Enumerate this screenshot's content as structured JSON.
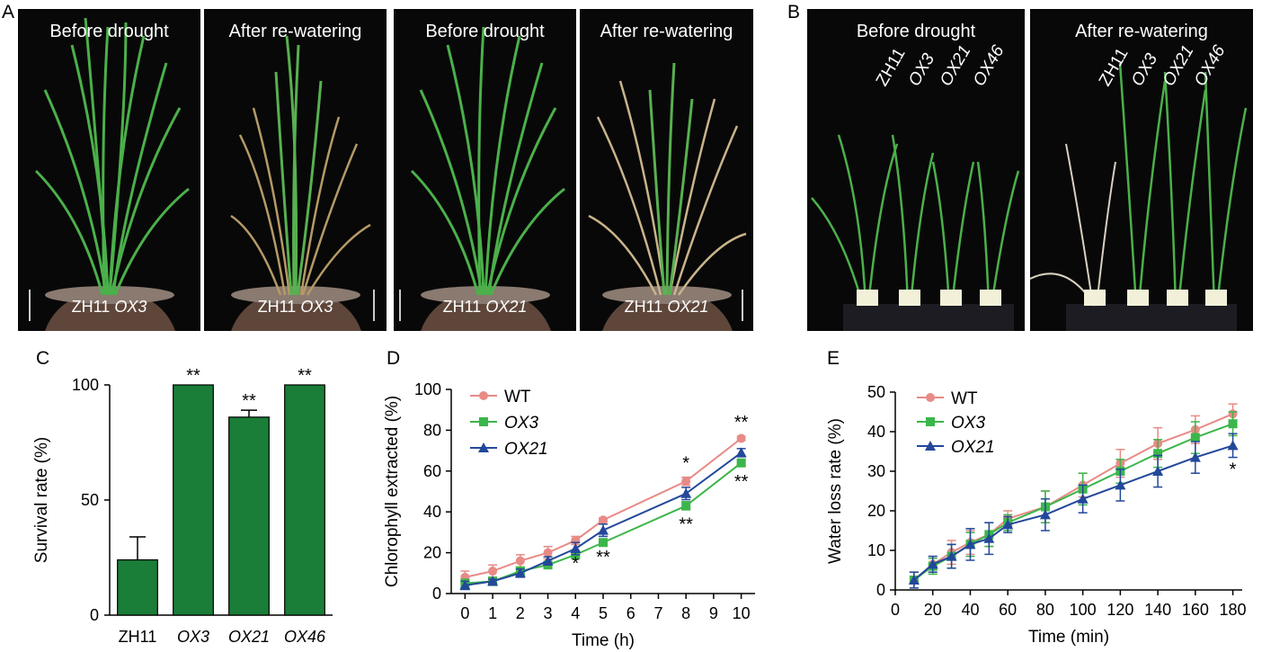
{
  "panel_letters": {
    "A": "A",
    "B": "B",
    "C": "C",
    "D": "D",
    "E": "E"
  },
  "photos_a": [
    {
      "caption": "Before drought",
      "label_plain": "ZH11 ",
      "label_italic": "OX3"
    },
    {
      "caption": "After re-watering",
      "label_plain": "ZH11 ",
      "label_italic": "OX3"
    },
    {
      "caption": "Before drought",
      "label_plain": "ZH11  ",
      "label_italic": "OX21"
    },
    {
      "caption": "After re-watering",
      "label_plain": "ZH11 ",
      "label_italic": "OX21"
    }
  ],
  "photos_b": [
    {
      "caption": "Before drought",
      "genotypes": [
        "ZH11",
        "OX3",
        "OX21",
        "OX46"
      ]
    },
    {
      "caption": "After re-watering",
      "genotypes": [
        "ZH11",
        "OX3",
        "OX21",
        "OX46"
      ]
    }
  ],
  "colors": {
    "bar": "#1a7d38",
    "wt": "#e88a86",
    "ox3": "#3cb64a",
    "ox21": "#23489a",
    "photo_bg": "#080808"
  },
  "chart_data": [
    {
      "type": "bar",
      "panel": "C",
      "categories": [
        "ZH11",
        "OX3",
        "OX21",
        "OX46"
      ],
      "categories_italic": [
        false,
        true,
        true,
        true
      ],
      "values": [
        24,
        100,
        86,
        100
      ],
      "errors": [
        10,
        0,
        3,
        0
      ],
      "significance": [
        "",
        "**",
        "**",
        "**"
      ],
      "ylabel": "Survival rate (%)",
      "xlabel": "",
      "ylim": [
        0,
        100
      ],
      "yticks": [
        0,
        50,
        100
      ],
      "legend": "none",
      "grid": false
    },
    {
      "type": "line",
      "panel": "D",
      "x": [
        0,
        1,
        2,
        3,
        4,
        5,
        8,
        10
      ],
      "xtick_labels": [
        "0",
        "1",
        "2",
        "3",
        "4",
        "5",
        "6",
        "7",
        "8",
        "9",
        "10"
      ],
      "series": [
        {
          "name": "WT",
          "italic": false,
          "marker": "circle",
          "values": [
            8,
            11,
            16,
            20,
            26,
            36,
            55,
            76
          ],
          "errors": [
            3,
            3,
            3,
            3,
            2,
            1,
            2,
            1
          ]
        },
        {
          "name": "OX3",
          "italic": true,
          "marker": "square",
          "values": [
            5,
            6,
            11,
            14,
            19,
            25,
            43,
            64
          ],
          "errors": [
            2,
            2,
            2,
            1,
            2,
            1,
            2,
            1
          ]
        },
        {
          "name": "OX21",
          "italic": true,
          "marker": "triangle",
          "values": [
            4,
            6,
            10,
            16,
            22,
            31,
            49,
            69
          ],
          "errors": [
            2,
            1,
            2,
            2,
            3,
            3,
            3,
            2
          ]
        }
      ],
      "annotations": [
        {
          "x": 4,
          "y": 12,
          "text": "*"
        },
        {
          "x": 5,
          "y": 15,
          "text": "**"
        },
        {
          "x": 8,
          "y": 61,
          "text": "*"
        },
        {
          "x": 8,
          "y": 31,
          "text": "**"
        },
        {
          "x": 10,
          "y": 81,
          "text": "**"
        },
        {
          "x": 10,
          "y": 52,
          "text": "**"
        }
      ],
      "xlabel": "Time (h)",
      "ylabel": "Chlorophyll extracted (%)",
      "ylim": [
        0,
        100
      ],
      "yticks": [
        0,
        20,
        40,
        60,
        80,
        100
      ],
      "legend": "top-left",
      "grid": false
    },
    {
      "type": "line",
      "panel": "E",
      "x": [
        10,
        20,
        30,
        40,
        50,
        60,
        80,
        100,
        120,
        140,
        160,
        180
      ],
      "xticks": [
        0,
        20,
        40,
        60,
        80,
        100,
        120,
        140,
        160,
        180
      ],
      "series": [
        {
          "name": "WT",
          "italic": false,
          "marker": "circle",
          "values": [
            2.5,
            6.5,
            9.5,
            12,
            14,
            18,
            21,
            26.5,
            32,
            37,
            40.5,
            44.5
          ],
          "errors": [
            2,
            2,
            3,
            3,
            3,
            2,
            4,
            3,
            3.5,
            4,
            3.5,
            2.5
          ]
        },
        {
          "name": "OX3",
          "italic": true,
          "marker": "square",
          "values": [
            2.5,
            6,
            8.5,
            11.5,
            14,
            17,
            21,
            25.5,
            30,
            34.5,
            38.5,
            42
          ],
          "errors": [
            2,
            2,
            3,
            3,
            3,
            2,
            4,
            4,
            3,
            3.5,
            4,
            3
          ]
        },
        {
          "name": "OX21",
          "italic": true,
          "marker": "triangle",
          "values": [
            2.5,
            6.5,
            8.5,
            11.5,
            13,
            16.5,
            19,
            23,
            26.5,
            30,
            33.5,
            36.5
          ],
          "errors": [
            2,
            2,
            3,
            4,
            4,
            2,
            4,
            3.5,
            4,
            4,
            4,
            3
          ]
        }
      ],
      "annotations": [
        {
          "x": 180,
          "y": 29,
          "text": "*"
        }
      ],
      "xlabel": "Time (min)",
      "ylabel": "Water loss rate (%)",
      "xlim": [
        0,
        185
      ],
      "ylim": [
        0,
        50
      ],
      "yticks": [
        0,
        10,
        20,
        30,
        40,
        50
      ],
      "legend": "top-left",
      "grid": false
    }
  ]
}
